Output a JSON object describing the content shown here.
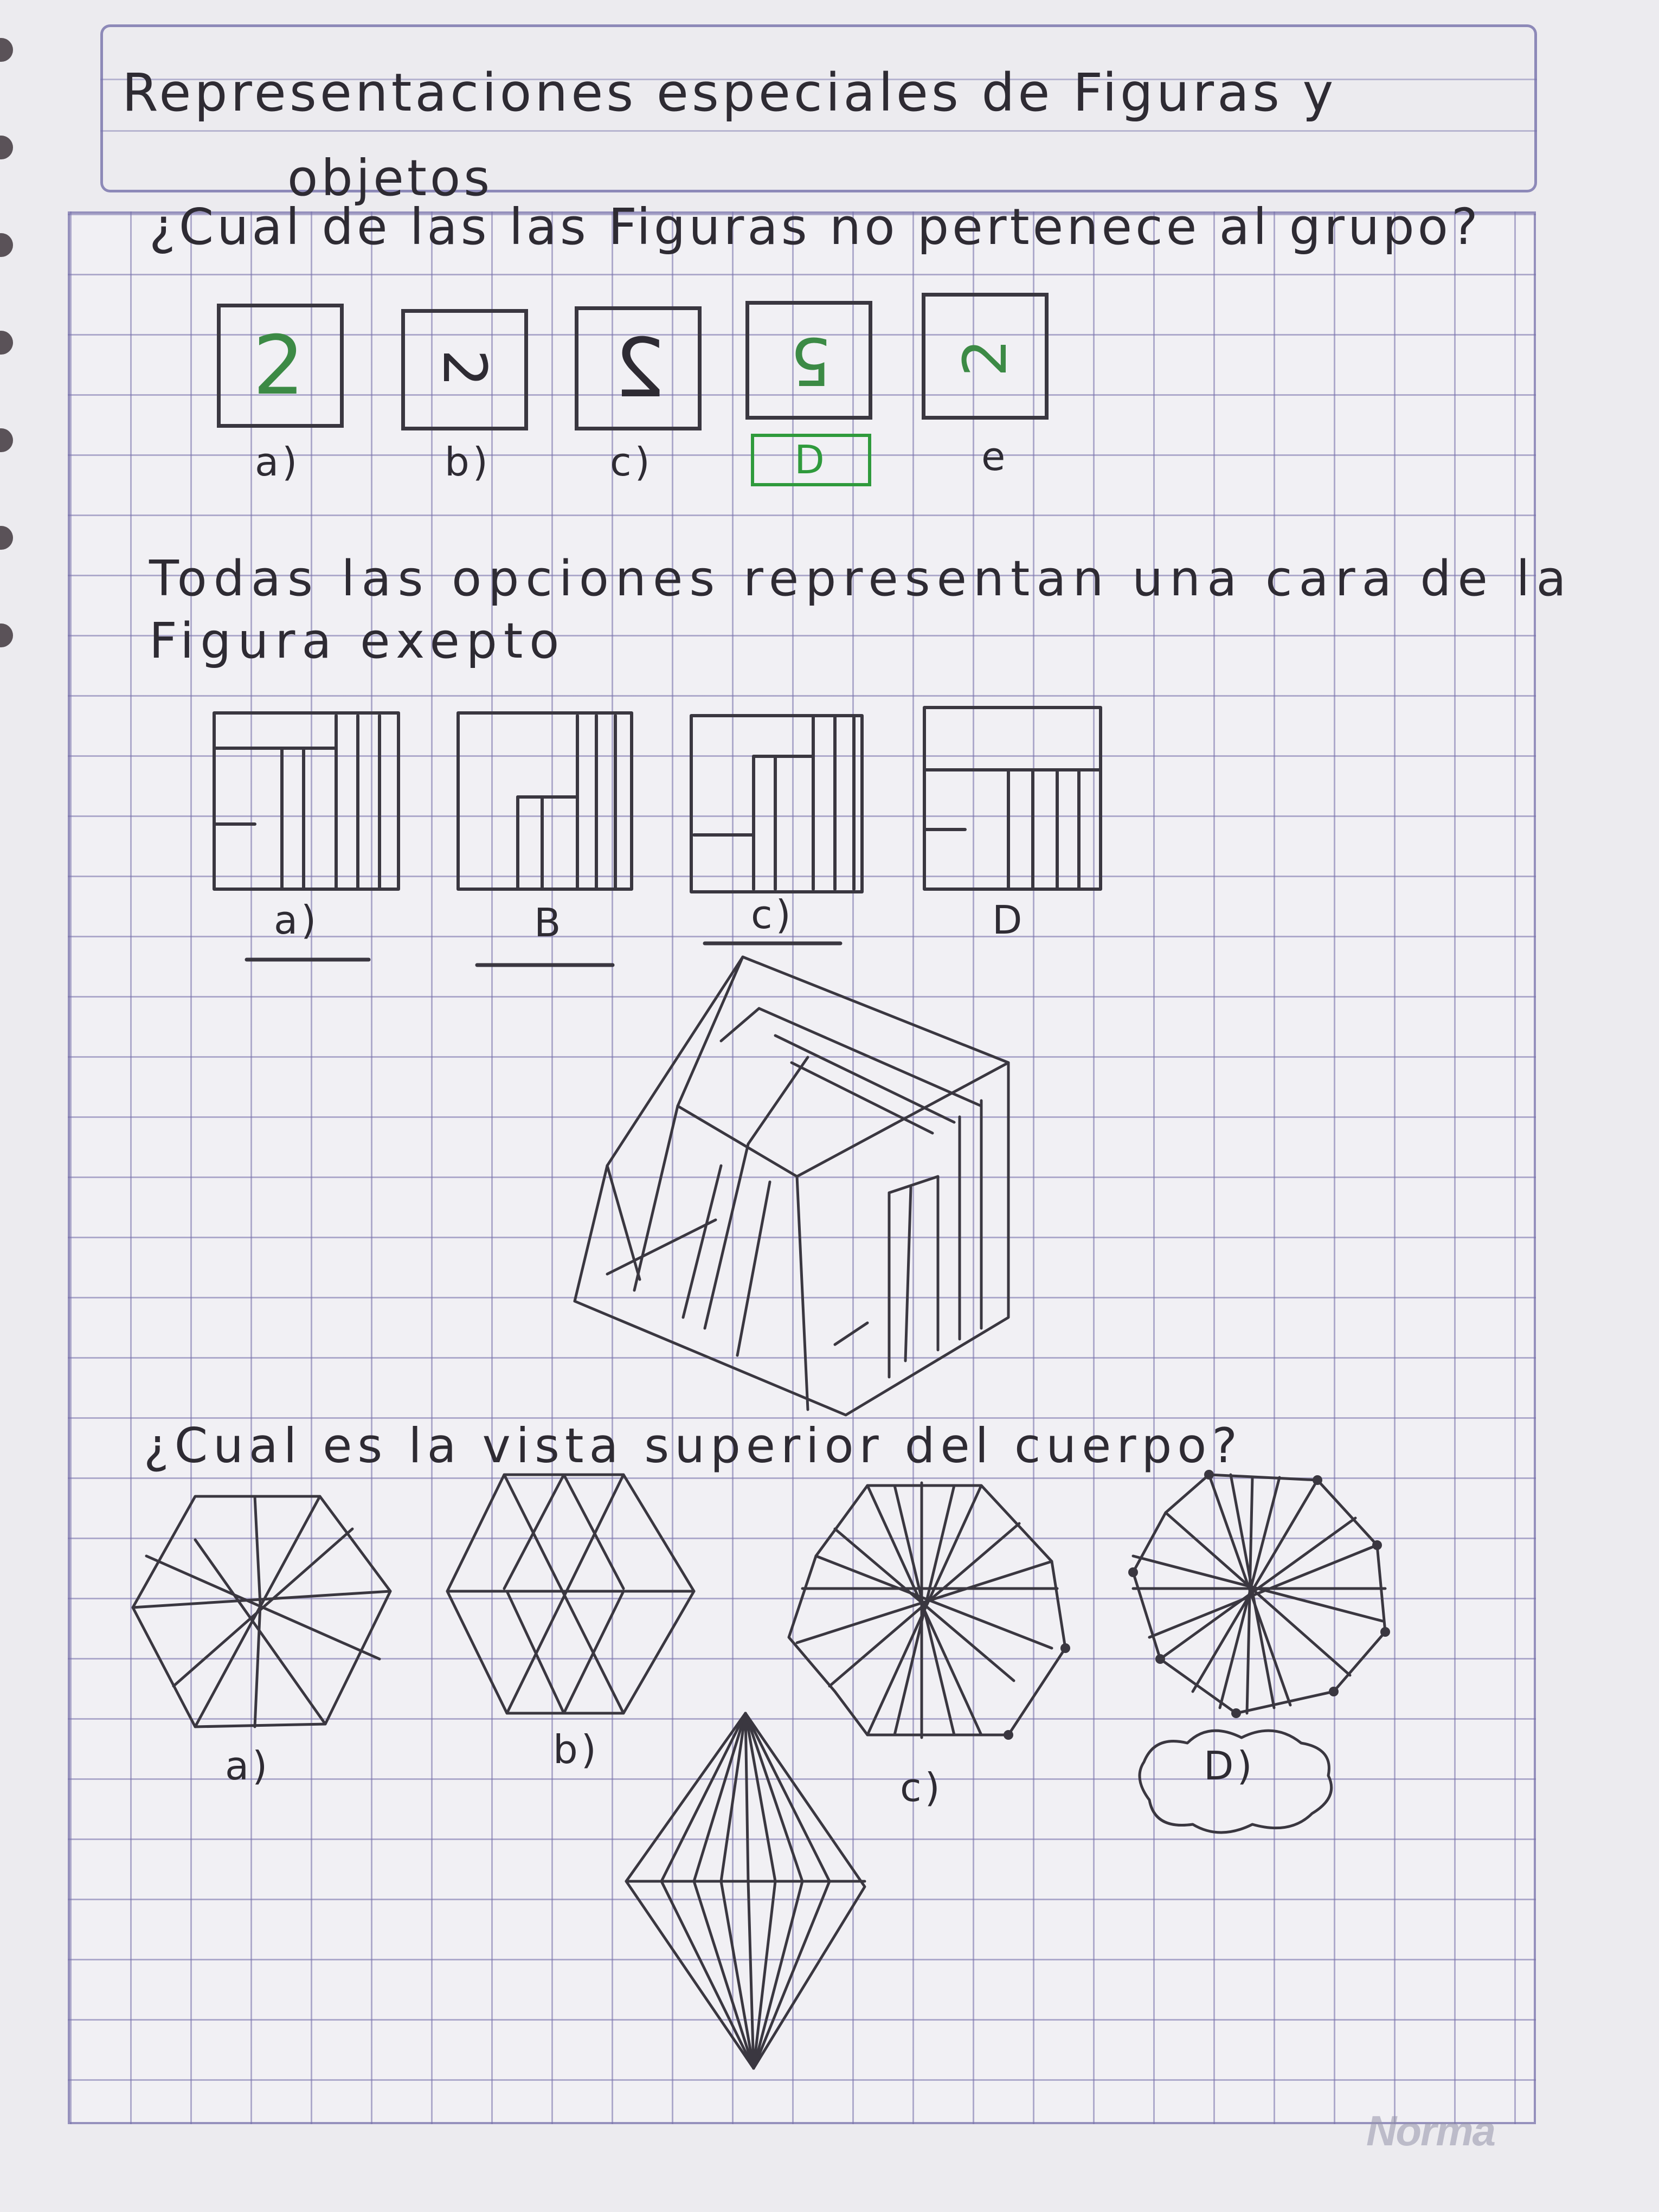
{
  "title_line1": "Representaciones especiales de Figuras y",
  "title_line2": "objetos",
  "q1": {
    "question": "¿Cual de las las Figuras no pertenece al grupo?",
    "glyphs": [
      "2",
      "2",
      "2",
      "5",
      "2"
    ],
    "labels": [
      "a)",
      "b)",
      "c)",
      "D",
      "e"
    ]
  },
  "q2": {
    "question_line1": "Todas las opciones representan una cara de la",
    "question_line2": "Figura exepto",
    "labels": [
      "a)",
      "B",
      "c)",
      "D"
    ]
  },
  "q3": {
    "question": "¿Cual es la vista superior del cuerpo?",
    "labels": [
      "a)",
      "b)",
      "c)",
      "D)"
    ]
  },
  "brand": "Norma",
  "colors": {
    "pencil": "#3a3740",
    "grid": "#7670aa",
    "answer": "#2f9a3c"
  }
}
